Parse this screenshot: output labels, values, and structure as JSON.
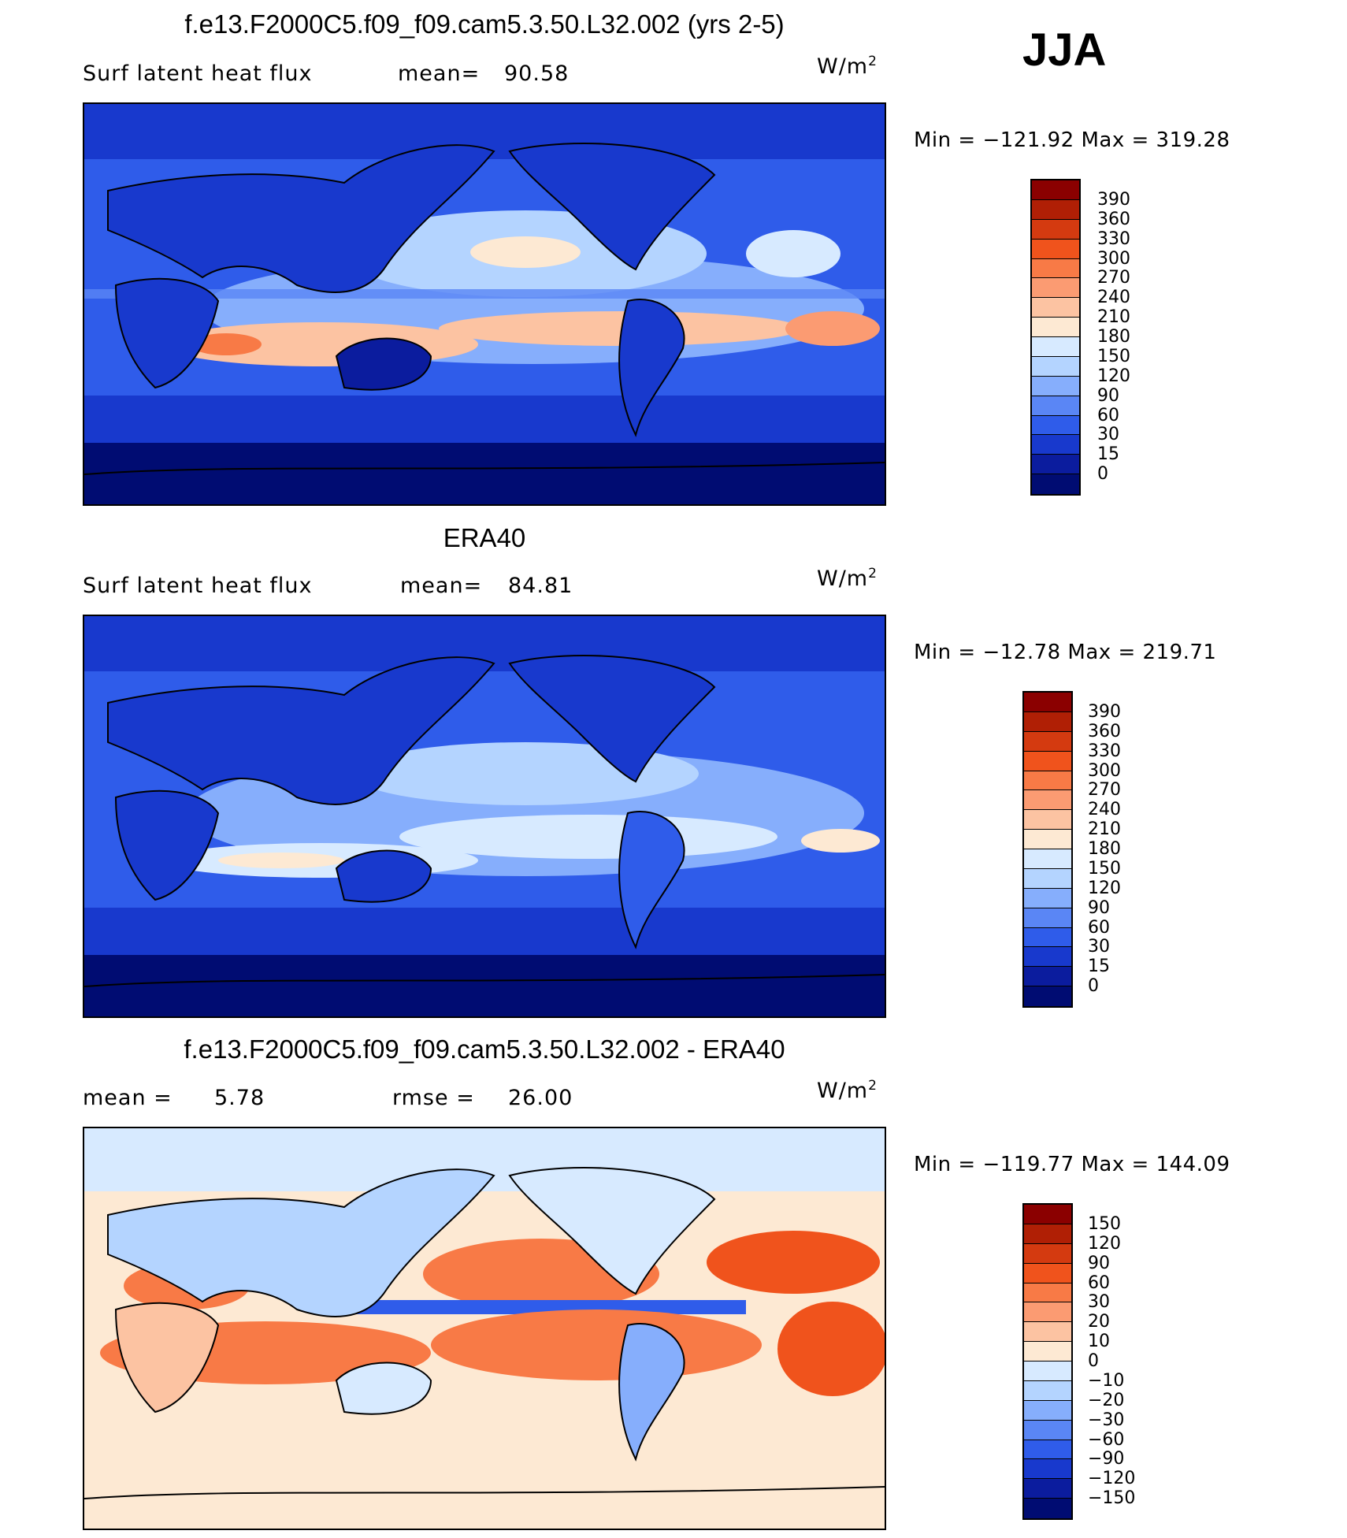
{
  "season": "JJA",
  "panels": [
    {
      "title": "f.e13.F2000C5.f09_f09.cam5.3.50.L32.002 (yrs 2-5)",
      "left_label": "Surf  latent  heat  flux",
      "stat1_label": "mean=",
      "stat1_value": "90.58",
      "stat2_label": "",
      "stat2_value": "",
      "units": "W/m",
      "units_exp": "2",
      "min_label": "Min  =  −121.92  Max  =  319.28",
      "colorbar": {
        "labels": [
          "390",
          "360",
          "330",
          "300",
          "270",
          "240",
          "210",
          "180",
          "150",
          "120",
          "90",
          "60",
          "30",
          "15",
          "0"
        ],
        "colors": [
          "#8b0000",
          "#b01f05",
          "#d43a10",
          "#f0531c",
          "#f87a46",
          "#fb9b72",
          "#fcc3a2",
          "#fde9d3",
          "#d7eaff",
          "#b4d4ff",
          "#86aefc",
          "#5a86f5",
          "#2f5cea",
          "#1839cd",
          "#0b1c9e",
          "#000c72"
        ]
      }
    },
    {
      "title": "ERA40",
      "left_label": "Surf  latent  heat  flux",
      "stat1_label": "mean=",
      "stat1_value": "84.81",
      "stat2_label": "",
      "stat2_value": "",
      "units": "W/m",
      "units_exp": "2",
      "min_label": "Min  =  −12.78  Max  =  219.71",
      "colorbar": {
        "labels": [
          "390",
          "360",
          "330",
          "300",
          "270",
          "240",
          "210",
          "180",
          "150",
          "120",
          "90",
          "60",
          "30",
          "15",
          "0"
        ],
        "colors": [
          "#8b0000",
          "#b01f05",
          "#d43a10",
          "#f0531c",
          "#f87a46",
          "#fb9b72",
          "#fcc3a2",
          "#fde9d3",
          "#d7eaff",
          "#b4d4ff",
          "#86aefc",
          "#5a86f5",
          "#2f5cea",
          "#1839cd",
          "#0b1c9e",
          "#000c72"
        ]
      }
    },
    {
      "title": "f.e13.F2000C5.f09_f09.cam5.3.50.L32.002 - ERA40",
      "left_label": "mean  =",
      "stat1_label": "",
      "stat1_value": "5.78",
      "stat2_label": "rmse  =",
      "stat2_value": "26.00",
      "units": "W/m",
      "units_exp": "2",
      "min_label": "Min  =  −119.77  Max  =  144.09",
      "colorbar": {
        "labels": [
          "150",
          "120",
          "90",
          "60",
          "30",
          "20",
          "10",
          "0",
          "−10",
          "−20",
          "−30",
          "−60",
          "−90",
          "−120",
          "−150"
        ],
        "colors": [
          "#8b0000",
          "#b01f05",
          "#d43a10",
          "#f0531c",
          "#f87a46",
          "#fb9b72",
          "#fcc3a2",
          "#fde9d3",
          "#d7eaff",
          "#b4d4ff",
          "#86aefc",
          "#5a86f5",
          "#2f5cea",
          "#1839cd",
          "#0b1c9e",
          "#000c72"
        ]
      }
    }
  ]
}
